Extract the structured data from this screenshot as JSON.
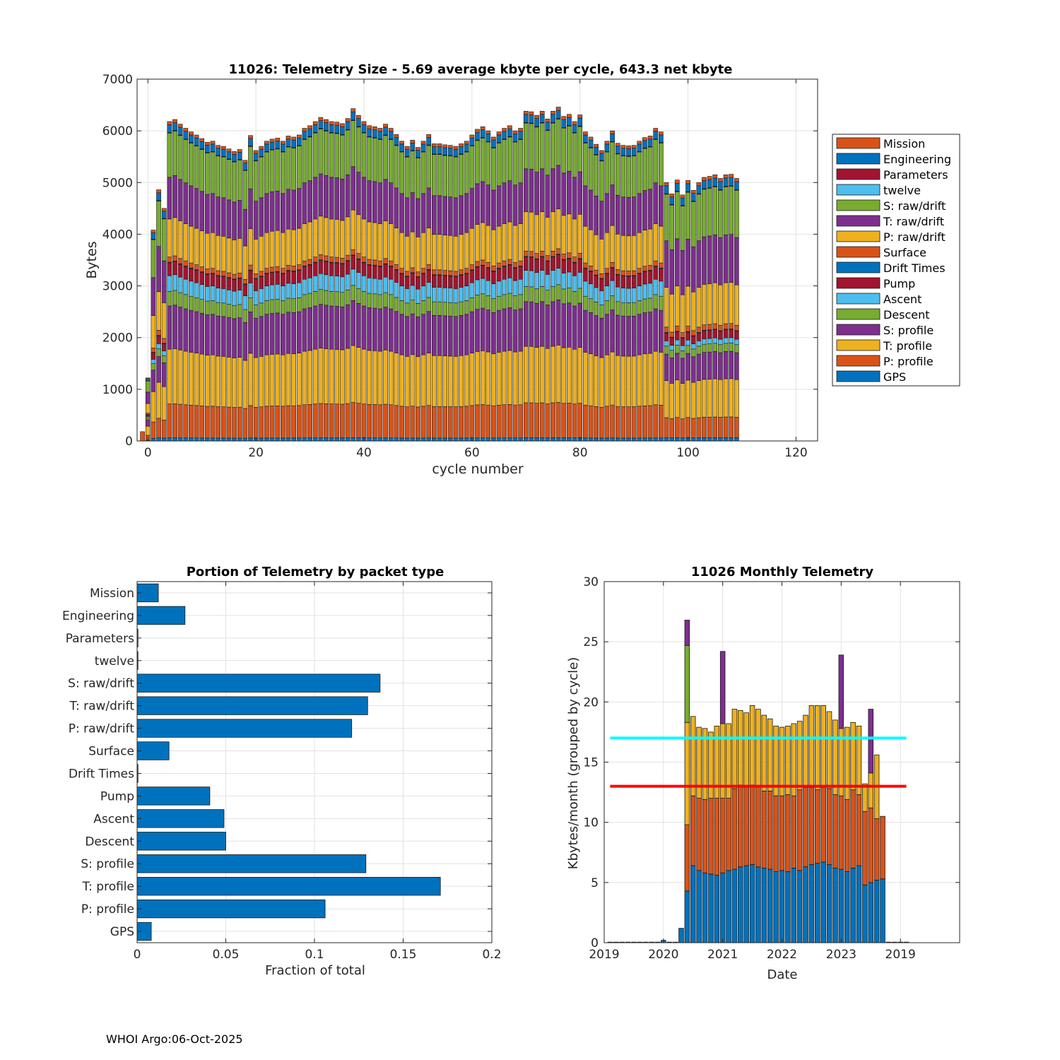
{
  "footer": "WHOI Argo:06-Oct-2025",
  "colors": {
    "mission": "#D95319",
    "engineering": "#0072BD",
    "parameters": "#A2142F",
    "twelve": "#4DBEEE",
    "s_raw": "#77AC30",
    "t_raw": "#7E2F8E",
    "p_raw": "#EDB120",
    "surface": "#D95319",
    "drift_times": "#0072BD",
    "pump": "#A2142F",
    "ascent": "#4DBEEE",
    "descent": "#77AC30",
    "s_profile": "#7E2F8E",
    "t_profile": "#EDB120",
    "p_profile": "#D95319",
    "gps": "#0072BD",
    "ref_cyan": "#00FFFF",
    "ref_red": "#FF0000",
    "hbar": "#0072BD"
  },
  "chart_data": [
    {
      "type": "bar",
      "stacked": true,
      "title": "11026: Telemetry Size - 5.69 average kbyte per cycle,  643.3 net kbyte",
      "xlabel": "cycle number",
      "ylabel": "Bytes",
      "xlim": [
        -2,
        124
      ],
      "ylim": [
        0,
        7000
      ],
      "xticks": [
        0,
        20,
        40,
        60,
        80,
        100,
        120
      ],
      "yticks": [
        0,
        1000,
        2000,
        3000,
        4000,
        5000,
        6000,
        7000
      ],
      "grid": true,
      "legend_position": "outside-right",
      "legend": [
        "Mission",
        "Engineering",
        "Parameters",
        "twelve",
        "S: raw/drift",
        "T: raw/drift",
        "P: raw/drift",
        "Surface",
        "Drift Times",
        "Pump",
        "Ascent",
        "Descent",
        "S: profile",
        "T: profile",
        "P: profile",
        "GPS"
      ],
      "stack_order": [
        "GPS",
        "P: profile",
        "T: profile",
        "S: profile",
        "Descent",
        "Ascent",
        "Pump",
        "Drift Times",
        "Surface",
        "P: raw/drift",
        "T: raw/drift",
        "S: raw/drift",
        "twelve",
        "Parameters",
        "Engineering",
        "Mission"
      ],
      "totals_first_cycles": [
        [
          -1,
          180
        ],
        [
          0,
          1220
        ],
        [
          1,
          4080
        ],
        [
          2,
          4860
        ],
        [
          3,
          4500
        ]
      ],
      "totals_by_cycle": [
        [
          4,
          6180
        ],
        [
          5,
          6220
        ],
        [
          6,
          6130
        ],
        [
          7,
          6050
        ],
        [
          8,
          5980
        ],
        [
          9,
          5920
        ],
        [
          10,
          5850
        ],
        [
          11,
          5780
        ],
        [
          12,
          5800
        ],
        [
          13,
          5720
        ],
        [
          14,
          5700
        ],
        [
          15,
          5650
        ],
        [
          16,
          5600
        ],
        [
          17,
          5640
        ],
        [
          18,
          5430
        ],
        [
          19,
          5910
        ],
        [
          20,
          5620
        ],
        [
          21,
          5700
        ],
        [
          22,
          5800
        ],
        [
          23,
          5840
        ],
        [
          24,
          5860
        ],
        [
          25,
          5800
        ],
        [
          26,
          5900
        ],
        [
          27,
          5880
        ],
        [
          28,
          5920
        ],
        [
          29,
          6050
        ],
        [
          30,
          6100
        ],
        [
          31,
          6180
        ],
        [
          32,
          6260
        ],
        [
          33,
          6220
        ],
        [
          34,
          6180
        ],
        [
          35,
          6170
        ],
        [
          36,
          6140
        ],
        [
          37,
          6240
        ],
        [
          38,
          6430
        ],
        [
          39,
          6300
        ],
        [
          40,
          6180
        ],
        [
          41,
          6100
        ],
        [
          42,
          6080
        ],
        [
          43,
          6050
        ],
        [
          44,
          6130
        ],
        [
          45,
          6050
        ],
        [
          46,
          5930
        ],
        [
          47,
          5800
        ],
        [
          48,
          5700
        ],
        [
          49,
          5820
        ],
        [
          50,
          5680
        ],
        [
          51,
          5800
        ],
        [
          52,
          5930
        ],
        [
          53,
          5750
        ],
        [
          54,
          5750
        ],
        [
          55,
          5730
        ],
        [
          56,
          5720
        ],
        [
          57,
          5700
        ],
        [
          58,
          5750
        ],
        [
          59,
          5800
        ],
        [
          60,
          5920
        ],
        [
          61,
          6030
        ],
        [
          62,
          6080
        ],
        [
          63,
          6000
        ],
        [
          64,
          5880
        ],
        [
          65,
          5980
        ],
        [
          66,
          6050
        ],
        [
          67,
          6100
        ],
        [
          68,
          6000
        ],
        [
          69,
          6050
        ],
        [
          70,
          6380
        ],
        [
          71,
          6370
        ],
        [
          72,
          6300
        ],
        [
          73,
          6380
        ],
        [
          74,
          6230
        ],
        [
          75,
          6380
        ],
        [
          76,
          6460
        ],
        [
          77,
          6280
        ],
        [
          78,
          6320
        ],
        [
          79,
          6180
        ],
        [
          80,
          6310
        ],
        [
          81,
          5980
        ],
        [
          82,
          5880
        ],
        [
          83,
          5740
        ],
        [
          84,
          5620
        ],
        [
          85,
          5800
        ],
        [
          86,
          6000
        ],
        [
          87,
          5760
        ],
        [
          88,
          5720
        ],
        [
          89,
          5710
        ],
        [
          90,
          5720
        ],
        [
          91,
          5800
        ],
        [
          92,
          5870
        ],
        [
          93,
          5900
        ],
        [
          94,
          6050
        ],
        [
          95,
          5980
        ],
        [
          96,
          5000
        ],
        [
          97,
          4780
        ],
        [
          98,
          5050
        ],
        [
          99,
          4760
        ],
        [
          100,
          5040
        ],
        [
          101,
          4850
        ],
        [
          102,
          5000
        ],
        [
          103,
          5100
        ],
        [
          104,
          5120
        ],
        [
          105,
          5150
        ],
        [
          106,
          5080
        ],
        [
          107,
          5150
        ],
        [
          108,
          5160
        ],
        [
          109,
          5080
        ]
      ],
      "typical_composition": [
        {
          "name": "GPS",
          "values": {
            "cycles_4_95": 60,
            "cycles_96_109": 60
          }
        },
        {
          "name": "P: profile",
          "values": {
            "cycles_4_95": 650,
            "cycles_96_109": 380
          }
        },
        {
          "name": "T: profile",
          "values": {
            "cycles_4_95": 1050,
            "cycles_96_109": 700
          }
        },
        {
          "name": "S: profile",
          "values": {
            "cycles_4_95": 830,
            "cycles_96_109": 500
          }
        },
        {
          "name": "Descent",
          "values": {
            "cycles_4_95": 280,
            "cycles_96_109": 150
          }
        },
        {
          "name": "Ascent",
          "values": {
            "cycles_4_95": 300,
            "cycles_96_109": 100
          }
        },
        {
          "name": "Pump",
          "values": {
            "cycles_4_95": 250,
            "cycles_96_109": 150
          }
        },
        {
          "name": "Drift Times",
          "values": {
            "cycles_4_95": 10,
            "cycles_96_109": 10
          }
        },
        {
          "name": "Surface",
          "values": {
            "cycles_4_95": 100,
            "cycles_96_109": 100
          }
        },
        {
          "name": "P: raw/drift",
          "values": {
            "cycles_4_95": 730,
            "cycles_96_109": 750
          }
        },
        {
          "name": "T: raw/drift",
          "values": {
            "cycles_4_95": 800,
            "cycles_96_109": 880
          }
        },
        {
          "name": "S: raw/drift",
          "values": {
            "cycles_4_95": 850,
            "cycles_96_109": 880
          }
        },
        {
          "name": "twelve",
          "values": {
            "cycles_4_95": 5,
            "cycles_96_109": 5
          }
        },
        {
          "name": "Parameters",
          "values": {
            "cycles_4_95": 5,
            "cycles_96_109": 5
          }
        },
        {
          "name": "Engineering",
          "values": {
            "cycles_4_95": 150,
            "cycles_96_109": 150
          }
        },
        {
          "name": "Mission",
          "values": {
            "cycles_4_95": 60,
            "cycles_96_109": 60
          }
        }
      ]
    },
    {
      "type": "bar",
      "orientation": "horizontal",
      "title": "Portion of Telemetry by packet type",
      "xlabel": "Fraction of total",
      "ylabel": "",
      "xlim": [
        0,
        0.2
      ],
      "xticks": [
        0,
        0.05,
        0.1,
        0.15,
        0.2
      ],
      "xtick_labels": [
        "0",
        "0.05",
        "0.1",
        "0.15",
        "0.2"
      ],
      "grid": true,
      "categories": [
        "Mission",
        "Engineering",
        "Parameters",
        "twelve",
        "S: raw/drift",
        "T: raw/drift",
        "P: raw/drift",
        "Surface",
        "Drift Times",
        "Pump",
        "Ascent",
        "Descent",
        "S: profile",
        "T: profile",
        "P: profile",
        "GPS"
      ],
      "values": [
        0.012,
        0.027,
        0.0005,
        0.0005,
        0.137,
        0.13,
        0.121,
        0.018,
        0.0005,
        0.041,
        0.049,
        0.05,
        0.129,
        0.171,
        0.106,
        0.008
      ]
    },
    {
      "type": "bar",
      "stacked": true,
      "title": "11026 Monthly Telemetry",
      "xlabel": "Date",
      "ylabel": "Kbytes/month (grouped by cycle)",
      "ylim": [
        0,
        30
      ],
      "yticks": [
        0,
        5,
        10,
        15,
        20,
        25,
        30
      ],
      "xlim_months": [
        0,
        60
      ],
      "xtick_months": [
        0,
        10,
        20,
        30,
        40,
        50
      ],
      "xtick_labels": [
        "2019",
        "2020",
        "2021",
        "2022",
        "2023",
        "2019"
      ],
      "grid": true,
      "reference_lines": [
        {
          "name": "cyan",
          "y": 17,
          "x_from_month": 1,
          "x_to_month": 51
        },
        {
          "name": "red",
          "y": 13,
          "x_from_month": 1,
          "x_to_month": 51
        }
      ],
      "series_names": [
        "Engineering-like (blue)",
        "Profile-like (orange)",
        "Raw/drift-like (yellow)",
        "Extra (green)",
        "Extra (purple)"
      ],
      "months": [
        1,
        2,
        3,
        4,
        5,
        6,
        7,
        8,
        9,
        10,
        11,
        12,
        13,
        14,
        15,
        16,
        17,
        18,
        19,
        20,
        21,
        22,
        23,
        24,
        25,
        26,
        27,
        28,
        29,
        30,
        31,
        32,
        33,
        34,
        35,
        36,
        37,
        38,
        39,
        40,
        41,
        42,
        43,
        44,
        45,
        46,
        47,
        48,
        49,
        50,
        51
      ],
      "series": [
        {
          "name": "blue",
          "values": [
            0.05,
            0.05,
            0.05,
            0.05,
            0.05,
            0.05,
            0.05,
            0.05,
            0.05,
            0.2,
            0.05,
            0.05,
            1.2,
            4.3,
            6.4,
            6.0,
            5.8,
            5.7,
            5.6,
            5.8,
            6.0,
            6.1,
            6.3,
            6.4,
            6.5,
            6.3,
            6.2,
            6.1,
            5.9,
            6.0,
            5.9,
            6.2,
            6.0,
            6.3,
            6.5,
            6.6,
            6.7,
            6.5,
            6.2,
            6.1,
            5.9,
            6.2,
            6.4,
            4.8,
            5.0,
            5.2,
            5.3,
            0.05,
            0.05,
            0.05,
            0.05
          ]
        },
        {
          "name": "orange",
          "values": [
            0,
            0,
            0,
            0,
            0,
            0,
            0,
            0,
            0,
            0,
            0,
            0,
            0,
            5.5,
            5.8,
            6.0,
            6.1,
            6.3,
            6.4,
            6.2,
            6.0,
            6.7,
            6.8,
            6.6,
            6.6,
            6.7,
            6.4,
            6.5,
            6.3,
            6.2,
            6.4,
            6.0,
            6.7,
            6.6,
            6.4,
            6.1,
            6.2,
            6.3,
            6.1,
            6.1,
            6.0,
            6.5,
            5.9,
            6.1,
            6.2,
            5.1,
            5.2,
            0,
            0,
            0,
            0
          ]
        },
        {
          "name": "yellow",
          "values": [
            0,
            0,
            0,
            0,
            0,
            0,
            0,
            0,
            0,
            0,
            0,
            0,
            0,
            8.5,
            6.6,
            5.9,
            5.9,
            5.5,
            6.0,
            6.2,
            6.2,
            6.6,
            6.2,
            6.1,
            6.6,
            6.4,
            6.3,
            6.0,
            5.8,
            5.7,
            5.7,
            6.0,
            5.7,
            6.0,
            6.8,
            7.0,
            6.8,
            6.4,
            6.2,
            5.6,
            6.0,
            5.6,
            5.7,
            2.3,
            2.9,
            5.3,
            0,
            0,
            0,
            0,
            0
          ]
        },
        {
          "name": "green",
          "values": [
            0,
            0,
            0,
            0,
            0,
            0,
            0,
            0,
            0,
            0,
            0,
            0,
            0,
            6.4,
            0,
            0,
            0,
            0,
            0,
            0,
            0,
            0,
            0,
            0,
            0,
            0,
            0,
            0,
            0,
            0,
            0,
            0,
            0,
            0,
            0,
            0,
            0,
            0,
            0,
            0,
            0,
            0,
            0,
            0,
            0,
            0,
            0,
            0,
            0,
            0,
            0
          ]
        },
        {
          "name": "purple",
          "values": [
            0,
            0,
            0,
            0,
            0,
            0,
            0,
            0,
            0,
            0,
            0,
            0,
            0,
            2.1,
            0,
            0,
            0,
            0,
            0,
            6.0,
            0,
            0,
            0,
            0,
            0,
            0,
            0,
            0,
            0,
            0,
            0,
            0,
            0,
            0,
            0,
            0,
            0,
            0,
            0,
            6.1,
            0,
            0,
            0,
            0,
            5.3,
            0,
            0,
            0,
            0,
            0,
            0
          ]
        }
      ]
    }
  ]
}
